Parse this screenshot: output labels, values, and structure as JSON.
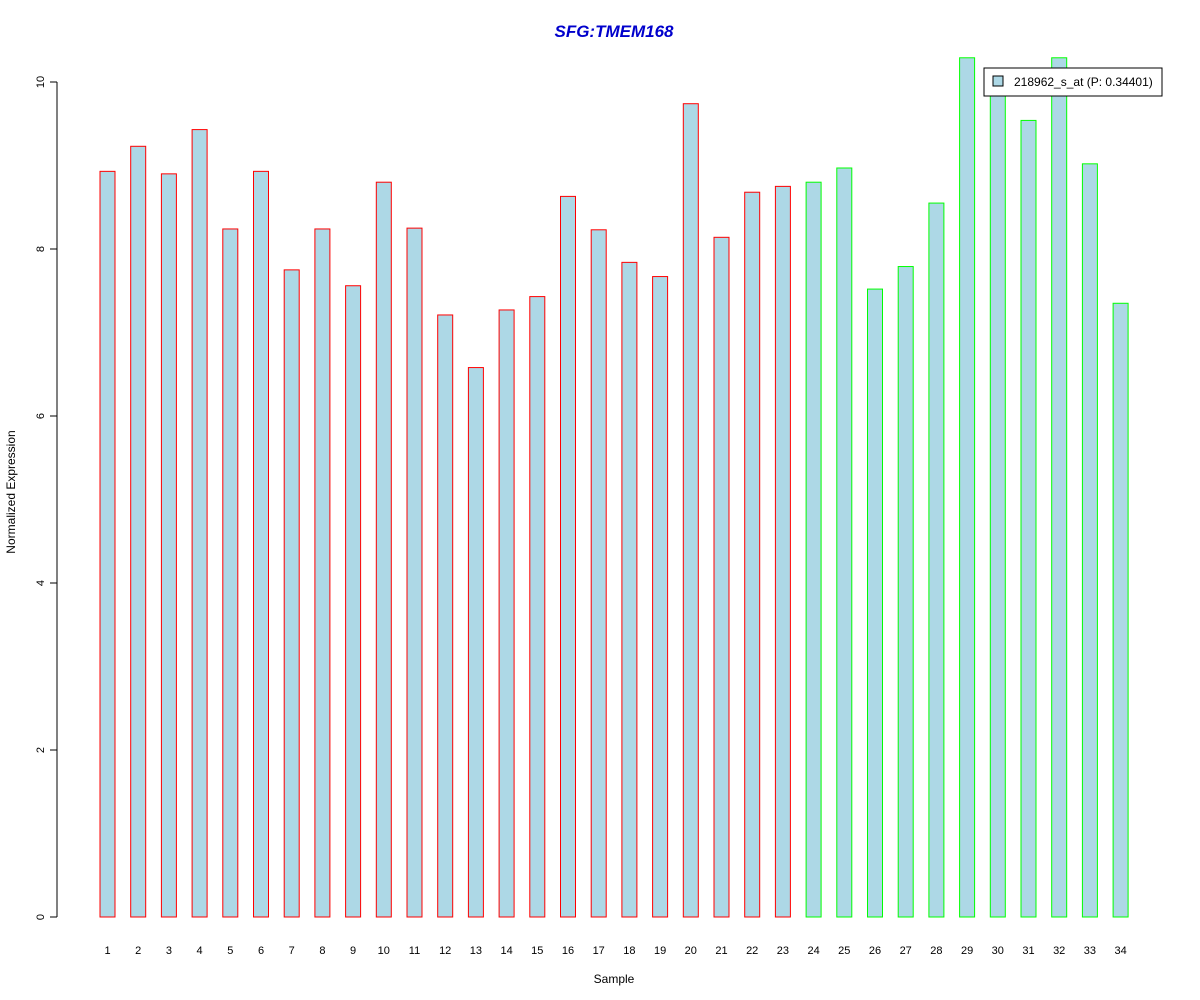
{
  "chart_data": {
    "type": "bar",
    "title": "SFG:TMEM168",
    "xlabel": "Sample",
    "ylabel": "Normalized Expression",
    "ylim": [
      0,
      10.3
    ],
    "yticks": [
      0,
      2,
      4,
      6,
      8,
      10
    ],
    "ytick_labels": [
      "0",
      "2",
      "4",
      "6",
      "8",
      "10"
    ],
    "categories": [
      "1",
      "2",
      "3",
      "4",
      "5",
      "6",
      "7",
      "8",
      "9",
      "10",
      "11",
      "12",
      "13",
      "14",
      "15",
      "16",
      "17",
      "18",
      "19",
      "20",
      "21",
      "22",
      "23",
      "24",
      "25",
      "26",
      "27",
      "28",
      "29",
      "30",
      "31",
      "32",
      "33",
      "34"
    ],
    "series": [
      {
        "name": "218962_s_at (P: 0.34401)",
        "values": [
          8.93,
          9.23,
          8.9,
          9.43,
          8.24,
          8.93,
          7.75,
          8.24,
          7.56,
          8.8,
          8.25,
          7.21,
          6.58,
          7.27,
          7.43,
          8.63,
          8.23,
          7.84,
          7.67,
          9.74,
          8.14,
          8.68,
          8.75,
          8.8,
          8.97,
          7.52,
          7.79,
          8.55,
          10.29,
          9.9,
          9.54,
          10.29,
          9.02,
          7.35
        ]
      }
    ],
    "group_colors": [
      "#ff0000",
      "#ff0000",
      "#ff0000",
      "#ff0000",
      "#ff0000",
      "#ff0000",
      "#ff0000",
      "#ff0000",
      "#ff0000",
      "#ff0000",
      "#ff0000",
      "#ff0000",
      "#ff0000",
      "#ff0000",
      "#ff0000",
      "#ff0000",
      "#ff0000",
      "#ff0000",
      "#ff0000",
      "#ff0000",
      "#ff0000",
      "#ff0000",
      "#ff0000",
      "#00ff00",
      "#00ff00",
      "#00ff00",
      "#00ff00",
      "#00ff00",
      "#00ff00",
      "#00ff00",
      "#00ff00",
      "#00ff00",
      "#00ff00",
      "#00ff00"
    ],
    "bar_fill": "#add8e6",
    "title_color": "#0000cc",
    "legend_position": "top-right",
    "grid": false
  }
}
